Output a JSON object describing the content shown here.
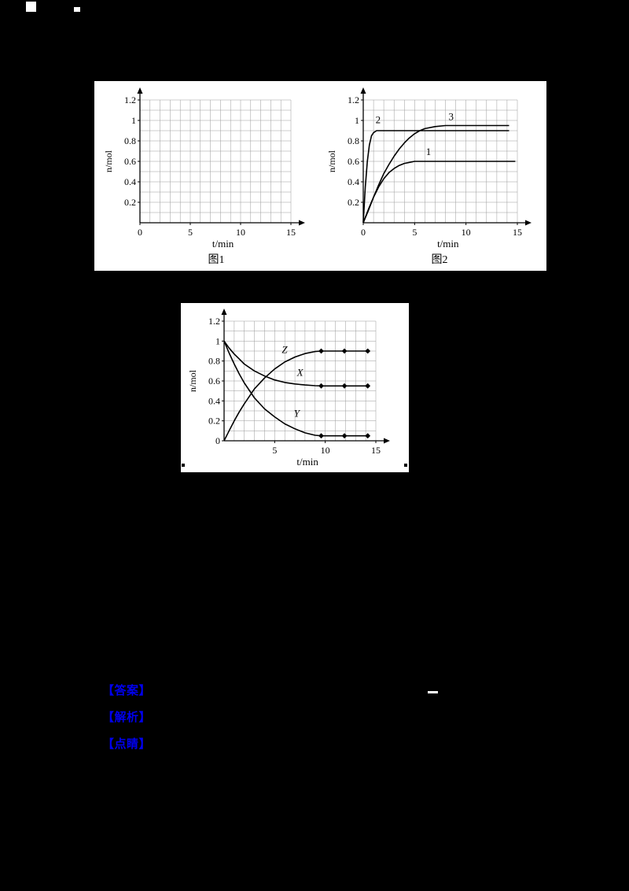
{
  "page": {
    "background_color": "#000000",
    "link_color": "#0000ee"
  },
  "annotations": {
    "answer_label": "【答案】",
    "analysis_label": "【解析】",
    "note_label": "【点睛】"
  },
  "chart_data": [
    {
      "id": "figure-1",
      "type": "line",
      "title": "图1",
      "xlabel": "t/min",
      "ylabel": "n/mol",
      "xlim": [
        0,
        15
      ],
      "ylim": [
        0,
        1.2
      ],
      "grid": true,
      "grid_step": [
        1,
        0.1
      ],
      "legend": "none",
      "xticks": [
        {
          "v": 0,
          "label": "0"
        },
        {
          "v": 5,
          "label": "5"
        },
        {
          "v": 10,
          "label": "10"
        },
        {
          "v": 15,
          "label": "15"
        }
      ],
      "yticks": [
        {
          "v": 0.2,
          "label": "0.2"
        },
        {
          "v": 0.4,
          "label": "0.4"
        },
        {
          "v": 0.6,
          "label": "0.6"
        },
        {
          "v": 0.8,
          "label": "0.8"
        },
        {
          "v": 1,
          "label": "1"
        },
        {
          "v": 1.2,
          "label": "1.2"
        }
      ],
      "series": []
    },
    {
      "id": "figure-2",
      "type": "line",
      "title": "图2",
      "xlabel": "t/min",
      "ylabel": "n/mol",
      "xlim": [
        0,
        15
      ],
      "ylim": [
        0,
        1.2
      ],
      "grid": true,
      "grid_step": [
        1,
        0.1
      ],
      "legend": "inline-labels",
      "xticks": [
        {
          "v": 0,
          "label": "0"
        },
        {
          "v": 5,
          "label": "5"
        },
        {
          "v": 10,
          "label": "10"
        },
        {
          "v": 15,
          "label": "15"
        }
      ],
      "yticks": [
        {
          "v": 0.2,
          "label": "0.2"
        },
        {
          "v": 0.4,
          "label": "0.4"
        },
        {
          "v": 0.6,
          "label": "0.6"
        },
        {
          "v": 0.8,
          "label": "0.8"
        },
        {
          "v": 1,
          "label": "1"
        },
        {
          "v": 1.2,
          "label": "1.2"
        }
      ],
      "series": [
        {
          "name": "1",
          "italic": false,
          "label_pos": [
            6.1,
            0.66
          ],
          "x": [
            0,
            0.5,
            1,
            1.5,
            2,
            2.5,
            3,
            3.5,
            4,
            4.5,
            5,
            6,
            14.8
          ],
          "y": [
            0,
            0.13,
            0.25,
            0.35,
            0.43,
            0.49,
            0.53,
            0.56,
            0.58,
            0.59,
            0.6,
            0.6,
            0.6
          ],
          "markers": []
        },
        {
          "name": "2",
          "italic": false,
          "label_pos": [
            1.2,
            0.975
          ],
          "x": [
            0,
            0.2,
            0.4,
            0.6,
            0.8,
            1,
            1.3,
            1.8,
            14.2
          ],
          "y": [
            0,
            0.35,
            0.6,
            0.76,
            0.85,
            0.88,
            0.9,
            0.9,
            0.9
          ],
          "markers": []
        },
        {
          "name": "3",
          "italic": false,
          "label_pos": [
            8.3,
            1.005
          ],
          "x": [
            0,
            0.5,
            1,
            1.5,
            2,
            2.5,
            3,
            3.5,
            4,
            4.5,
            5,
            5.5,
            6,
            7,
            8,
            14.2
          ],
          "y": [
            0,
            0.12,
            0.25,
            0.37,
            0.48,
            0.57,
            0.65,
            0.72,
            0.78,
            0.83,
            0.87,
            0.9,
            0.92,
            0.94,
            0.95,
            0.95
          ],
          "markers": []
        }
      ]
    },
    {
      "id": "figure-3",
      "type": "line",
      "title": "",
      "xlabel": "t/min",
      "ylabel": "n/mol",
      "xlim": [
        0,
        15
      ],
      "ylim": [
        0,
        1.2
      ],
      "grid": true,
      "grid_step": [
        1,
        0.1
      ],
      "legend": "inline-labels",
      "xticks": [
        {
          "v": 5,
          "label": "5"
        },
        {
          "v": 10,
          "label": "10"
        },
        {
          "v": 15,
          "label": "15"
        }
      ],
      "yticks": [
        {
          "v": 0,
          "label": "0"
        },
        {
          "v": 0.2,
          "label": "0.2"
        },
        {
          "v": 0.4,
          "label": "0.4"
        },
        {
          "v": 0.6,
          "label": "0.6"
        },
        {
          "v": 0.8,
          "label": "0.8"
        },
        {
          "v": 1,
          "label": "1"
        },
        {
          "v": 1.2,
          "label": "1.2"
        }
      ],
      "series": [
        {
          "name": "X",
          "italic": true,
          "label_pos": [
            7.2,
            0.65
          ],
          "x": [
            0,
            0.5,
            1,
            1.5,
            2,
            3,
            4,
            5,
            6,
            7,
            8,
            9,
            9.6,
            14.2
          ],
          "y": [
            1,
            0.93,
            0.87,
            0.82,
            0.77,
            0.7,
            0.65,
            0.61,
            0.585,
            0.57,
            0.56,
            0.553,
            0.55,
            0.55
          ],
          "markers": [
            9.6,
            11.9,
            14.2
          ]
        },
        {
          "name": "Y",
          "italic": true,
          "label_pos": [
            6.9,
            0.24
          ],
          "x": [
            0,
            0.5,
            1,
            1.5,
            2,
            3,
            4,
            5,
            6,
            7,
            8,
            9,
            9.6,
            14.2
          ],
          "y": [
            1,
            0.88,
            0.77,
            0.67,
            0.58,
            0.43,
            0.32,
            0.24,
            0.17,
            0.12,
            0.08,
            0.055,
            0.05,
            0.05
          ],
          "markers": [
            9.6,
            11.9,
            14.2
          ]
        },
        {
          "name": "Z",
          "italic": true,
          "label_pos": [
            5.7,
            0.88
          ],
          "x": [
            0,
            0.5,
            1,
            1.5,
            2,
            3,
            4,
            5,
            6,
            7,
            8,
            9,
            9.6,
            14.2
          ],
          "y": [
            0,
            0.1,
            0.2,
            0.29,
            0.37,
            0.52,
            0.63,
            0.72,
            0.79,
            0.84,
            0.875,
            0.895,
            0.9,
            0.9
          ],
          "markers": [
            9.6,
            11.9,
            14.2
          ]
        }
      ]
    }
  ]
}
